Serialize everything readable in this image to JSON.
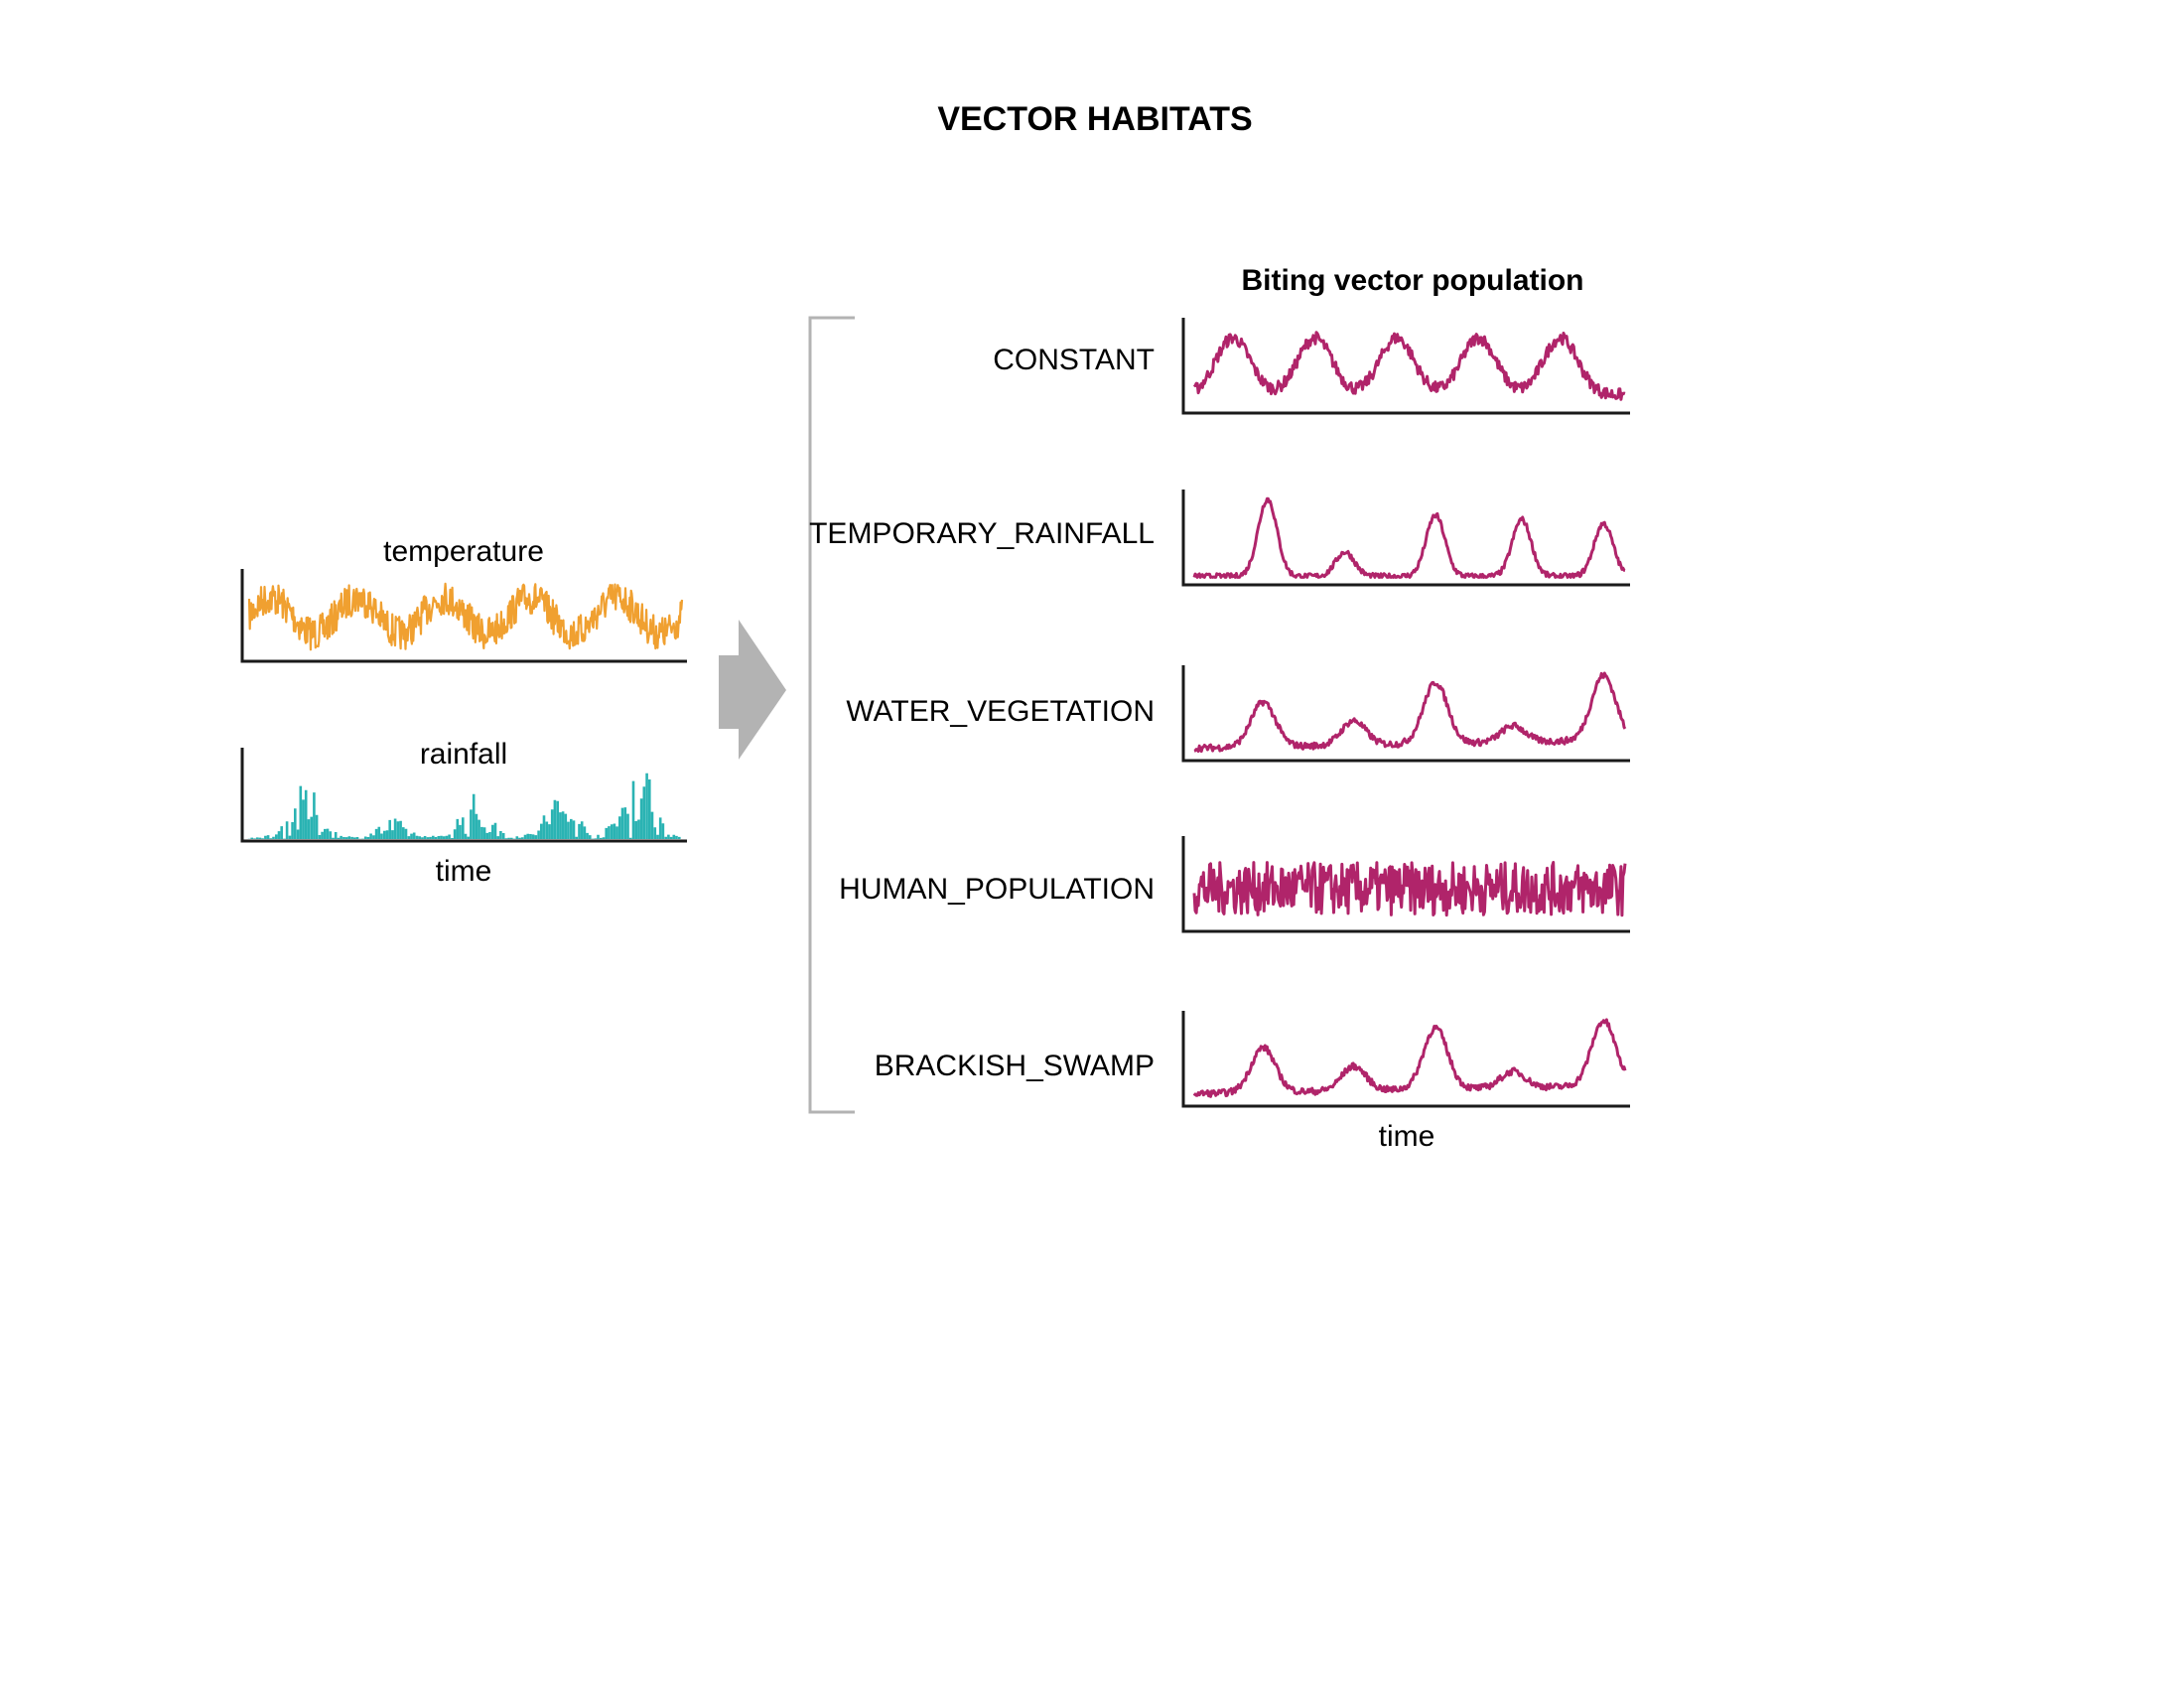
{
  "title": "VECTOR HABITATS",
  "inputs": {
    "temperature_label": "temperature",
    "rainfall_label": "rainfall",
    "time_label": "time"
  },
  "output": {
    "title": "Biting vector population",
    "time_label": "time",
    "habitats": [
      "CONSTANT",
      "TEMPORARY_RAINFALL",
      "WATER_VEGETATION",
      "HUMAN_POPULATION",
      "BRACKISH_SWAMP"
    ]
  },
  "colors": {
    "temperature": "#f0a030",
    "rainfall": "#2ab3b3",
    "vector": "#b0246a",
    "arrow": "#b3b3b3",
    "bracket": "#b3b3b3"
  },
  "icons": {
    "arrow": "right-arrow-icon"
  }
}
